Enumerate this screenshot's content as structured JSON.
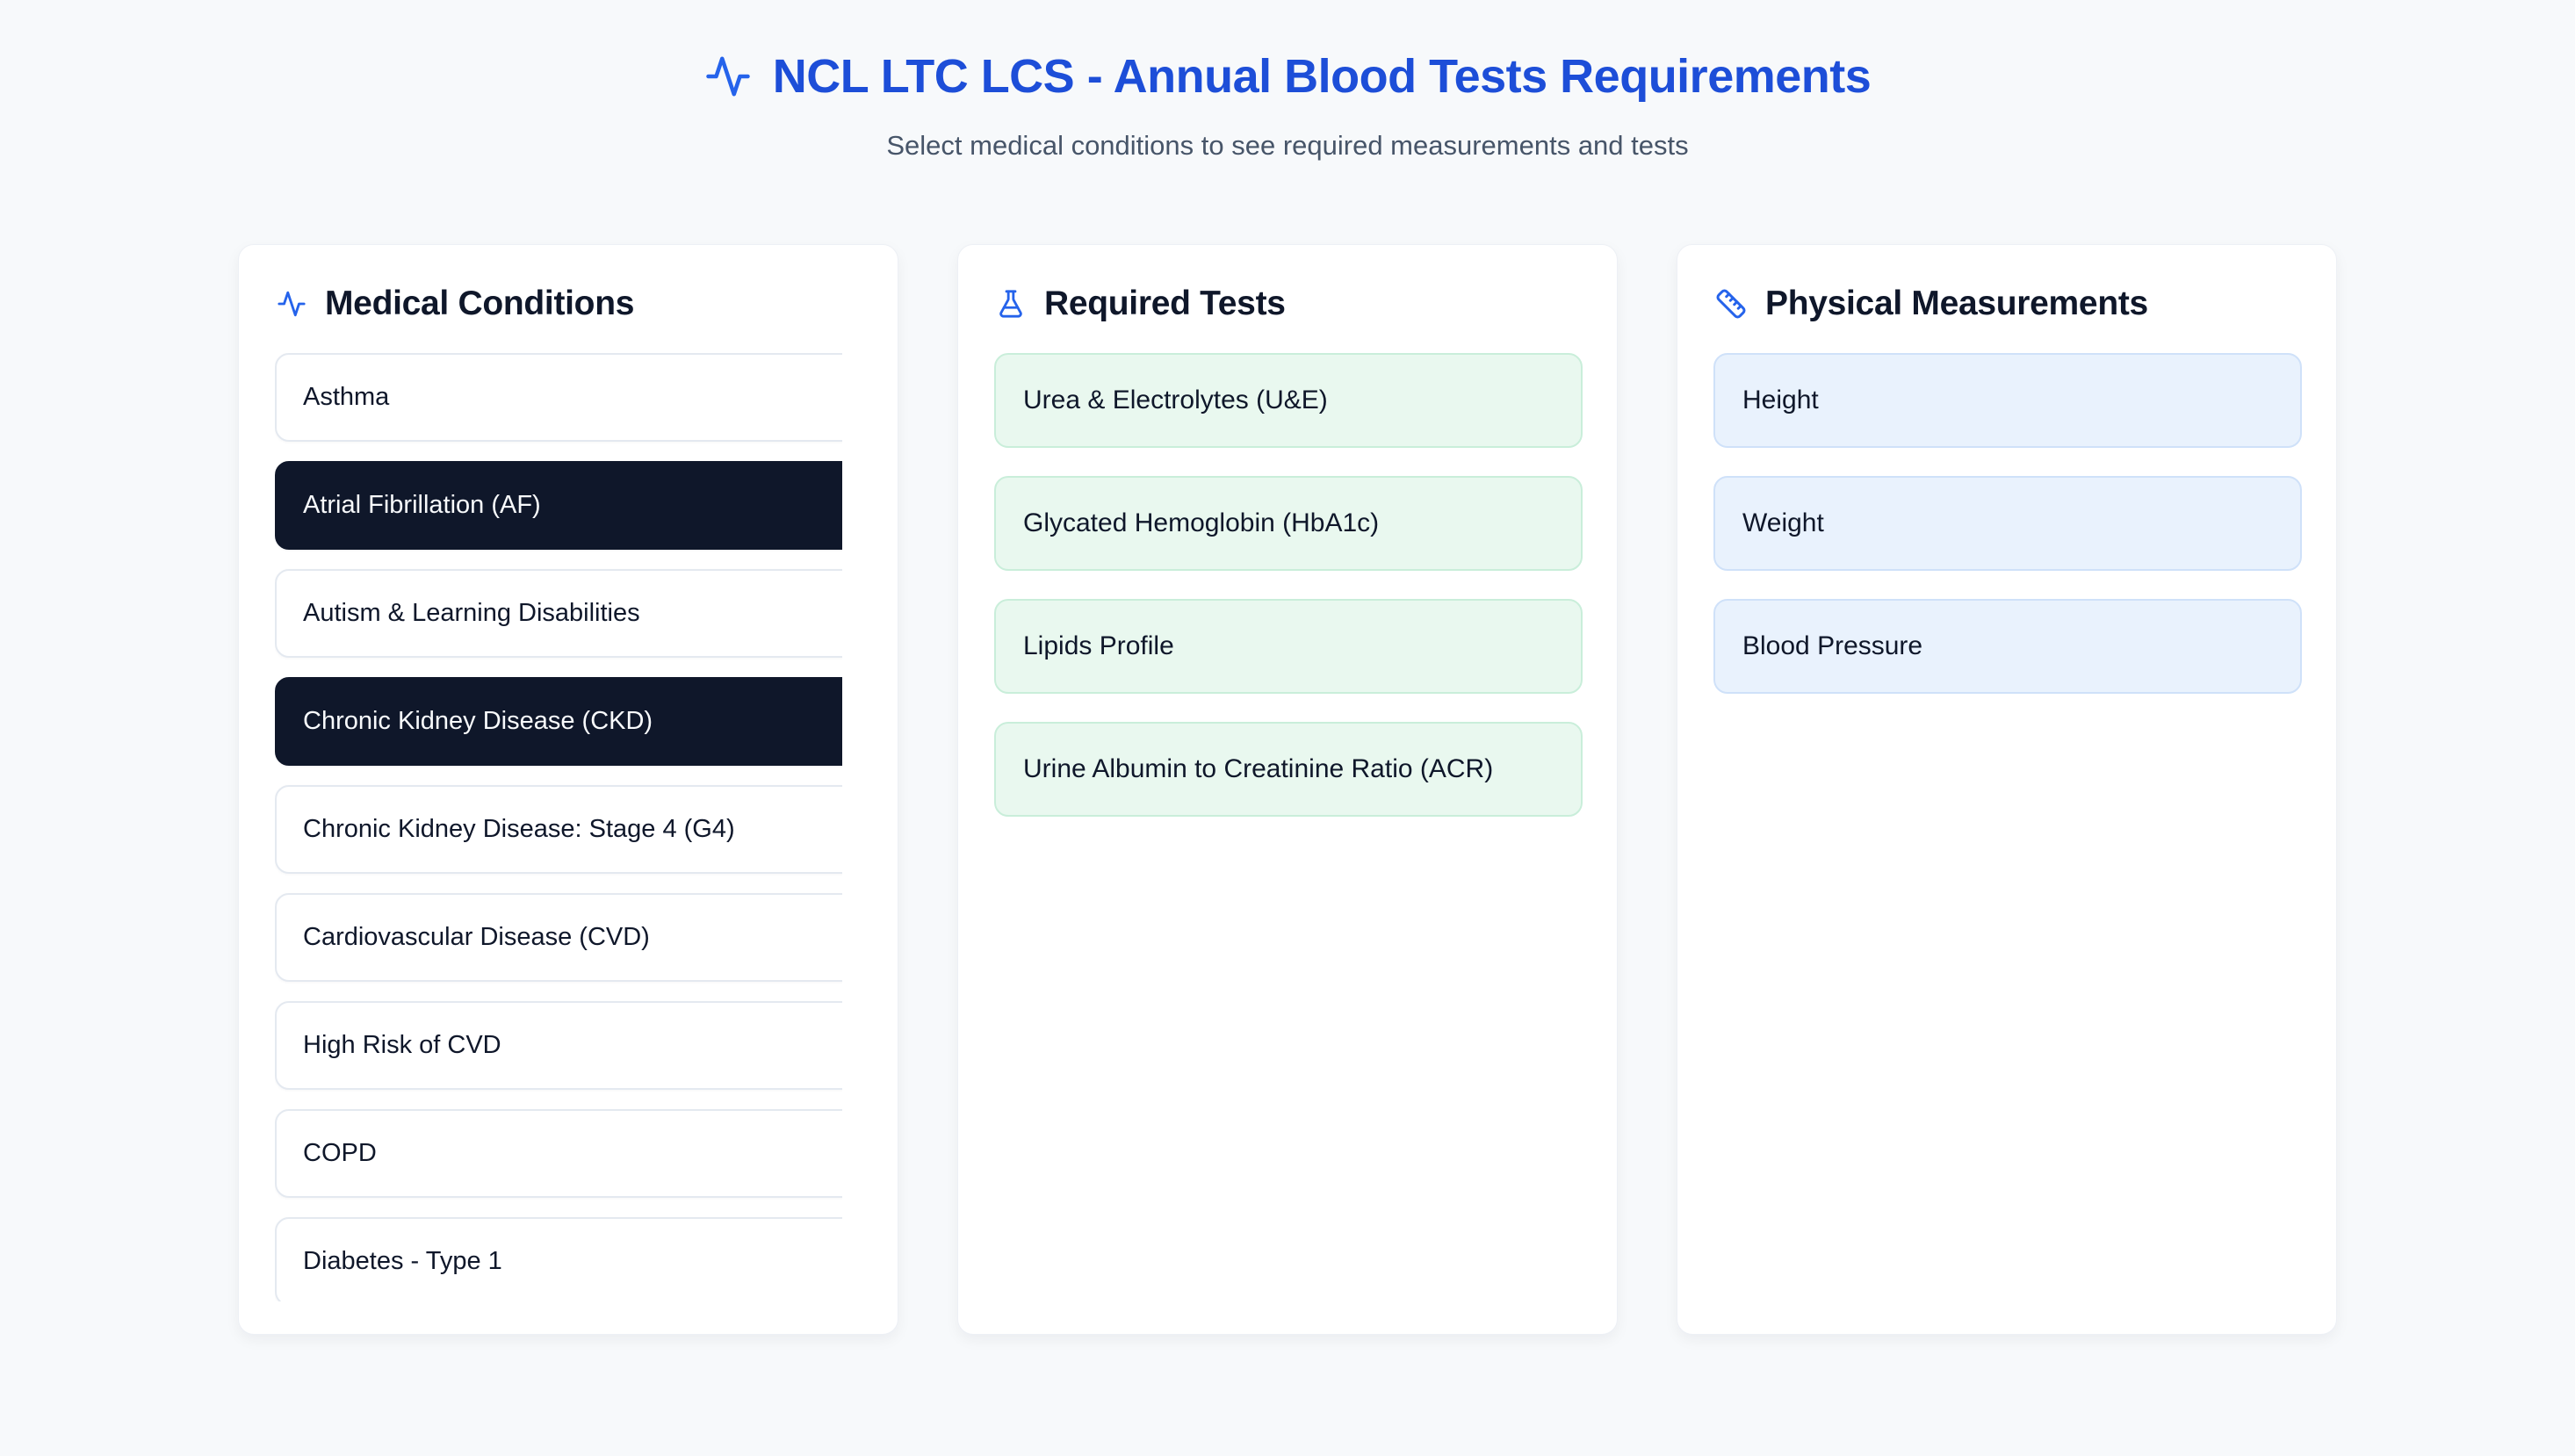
{
  "header": {
    "title": "NCL LTC LCS - Annual Blood Tests Requirements",
    "subtitle": "Select medical conditions to see required measurements and tests"
  },
  "panels": {
    "conditions": {
      "title": "Medical Conditions",
      "icon": "activity-icon",
      "items": [
        {
          "label": "Asthma",
          "selected": false
        },
        {
          "label": "Atrial Fibrillation (AF)",
          "selected": true
        },
        {
          "label": "Autism & Learning Disabilities",
          "selected": false
        },
        {
          "label": "Chronic Kidney Disease (CKD)",
          "selected": true
        },
        {
          "label": "Chronic Kidney Disease: Stage 4 (G4)",
          "selected": false
        },
        {
          "label": "Cardiovascular Disease (CVD)",
          "selected": false
        },
        {
          "label": "High Risk of CVD",
          "selected": false
        },
        {
          "label": "COPD",
          "selected": false
        },
        {
          "label": "Diabetes - Type 1",
          "selected": false
        }
      ]
    },
    "tests": {
      "title": "Required Tests",
      "icon": "flask-icon",
      "items": [
        "Urea & Electrolytes (U&E)",
        "Glycated Hemoglobin (HbA1c)",
        "Lipids Profile",
        "Urine Albumin to Creatinine Ratio (ACR)"
      ]
    },
    "measurements": {
      "title": "Physical Measurements",
      "icon": "ruler-icon",
      "items": [
        "Height",
        "Weight",
        "Blood Pressure"
      ]
    }
  },
  "colors": {
    "title_blue": "#1d4ed8",
    "icon_blue": "#2563eb",
    "selected_bg": "#0f172a",
    "test_bg": "#e9f8ef",
    "test_border": "#c9eeda",
    "measure_bg": "#e9f2fd",
    "measure_border": "#cfe1f9",
    "page_bg": "#f7f9fb"
  }
}
